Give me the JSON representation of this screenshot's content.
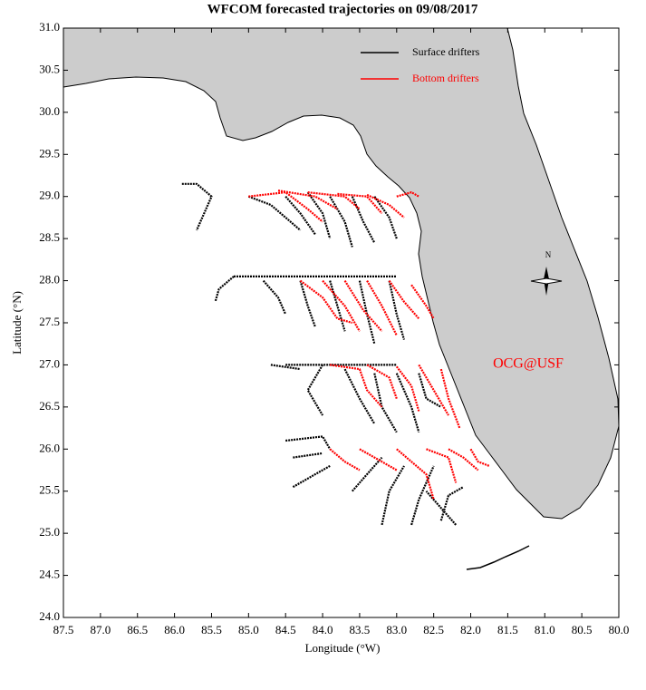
{
  "chart_data": {
    "type": "trajectory",
    "title": "WFCOM forecasted trajectories on 09/08/2017",
    "x_label": "Longitude (°W)",
    "y_label": "Latitude (°N)",
    "annotation": "OCG@USF",
    "annotation_color": "#ff0000",
    "compass_label": "N",
    "land_color": "#cccccc",
    "xlim": [
      87.5,
      80.0
    ],
    "ylim": [
      24.0,
      31.0
    ],
    "xticks": [
      87.5,
      {
        "value": 87,
        "label": "87.0"
      },
      86.5,
      {
        "value": 86,
        "label": "86.0"
      },
      85.5,
      {
        "value": 85,
        "label": "85.0"
      },
      84.5,
      {
        "value": 84,
        "label": "84.0"
      },
      83.5,
      {
        "value": 83,
        "label": "83.0"
      },
      82.5,
      {
        "value": 82,
        "label": "82.0"
      },
      81.5,
      {
        "value": 81,
        "label": "81.0"
      },
      80.5,
      {
        "value": 80,
        "label": "80.0"
      }
    ],
    "yticks": [
      {
        "value": 24,
        "label": "24.0"
      },
      24.5,
      {
        "value": 25,
        "label": "25.0"
      },
      25.5,
      {
        "value": 26,
        "label": "26.0"
      },
      26.5,
      {
        "value": 27,
        "label": "27.0"
      },
      27.5,
      {
        "value": 28,
        "label": "28.0"
      },
      28.5,
      {
        "value": 29,
        "label": "29.0"
      },
      29.5,
      {
        "value": 30,
        "label": "30.0"
      },
      30.5,
      {
        "value": 31,
        "label": "31.0"
      }
    ],
    "series": [
      {
        "name": "Surface drifters",
        "color": "#000000",
        "tracks": [
          {
            "x": [
              85.9,
              85.7,
              85.5,
              85.6,
              85.7
            ],
            "y": [
              29.15,
              29.15,
              29.0,
              28.8,
              28.6
            ]
          },
          {
            "x": [
              85.0,
              84.7,
              84.5,
              84.3
            ],
            "y": [
              29.0,
              28.9,
              28.75,
              28.6
            ]
          },
          {
            "x": [
              84.5,
              84.3,
              84.1
            ],
            "y": [
              29.0,
              28.8,
              28.55
            ]
          },
          {
            "x": [
              84.2,
              84.0,
              83.9
            ],
            "y": [
              29.05,
              28.8,
              28.5
            ]
          },
          {
            "x": [
              83.9,
              83.7,
              83.6
            ],
            "y": [
              29.0,
              28.7,
              28.4
            ]
          },
          {
            "x": [
              83.6,
              83.45,
              83.3
            ],
            "y": [
              29.0,
              28.7,
              28.45
            ]
          },
          {
            "x": [
              83.3,
              83.1,
              83.0
            ],
            "y": [
              29.0,
              28.75,
              28.5
            ]
          },
          {
            "x": [
              85.2,
              84.0,
              83.0
            ],
            "y": [
              28.05,
              28.05,
              28.05
            ]
          },
          {
            "x": [
              85.2,
              85.4,
              85.45
            ],
            "y": [
              28.05,
              27.9,
              27.75
            ]
          },
          {
            "x": [
              84.8,
              84.6,
              84.5
            ],
            "y": [
              28.0,
              27.8,
              27.6
            ]
          },
          {
            "x": [
              84.3,
              84.2,
              84.1
            ],
            "y": [
              28.0,
              27.7,
              27.45
            ]
          },
          {
            "x": [
              83.9,
              83.8,
              83.7
            ],
            "y": [
              28.0,
              27.7,
              27.4
            ]
          },
          {
            "x": [
              83.5,
              83.4,
              83.3
            ],
            "y": [
              28.0,
              27.6,
              27.25
            ]
          },
          {
            "x": [
              83.1,
              83.0,
              82.9
            ],
            "y": [
              28.0,
              27.6,
              27.3
            ]
          },
          {
            "x": [
              84.5,
              83.0
            ],
            "y": [
              27.0,
              27.0
            ]
          },
          {
            "x": [
              84.7,
              84.3
            ],
            "y": [
              27.0,
              26.95
            ]
          },
          {
            "x": [
              84.0,
              84.2,
              84.0
            ],
            "y": [
              27.0,
              26.7,
              26.4
            ]
          },
          {
            "x": [
              83.7,
              83.5,
              83.3
            ],
            "y": [
              26.95,
              26.6,
              26.3
            ]
          },
          {
            "x": [
              83.3,
              83.2,
              83.0
            ],
            "y": [
              26.9,
              26.5,
              26.2
            ]
          },
          {
            "x": [
              83.0,
              82.8,
              82.7
            ],
            "y": [
              26.9,
              26.5,
              26.2
            ]
          },
          {
            "x": [
              82.7,
              82.6,
              82.4
            ],
            "y": [
              26.9,
              26.6,
              26.5
            ]
          },
          {
            "x": [
              84.5,
              84.0,
              83.9
            ],
            "y": [
              26.1,
              26.15,
              26.0
            ]
          },
          {
            "x": [
              84.4,
              84.0
            ],
            "y": [
              25.9,
              25.95
            ]
          },
          {
            "x": [
              84.4,
              84.1,
              83.9
            ],
            "y": [
              25.55,
              25.7,
              25.8
            ]
          },
          {
            "x": [
              83.6,
              83.4,
              83.2
            ],
            "y": [
              25.5,
              25.7,
              25.9
            ]
          },
          {
            "x": [
              83.2,
              83.1,
              82.9
            ],
            "y": [
              25.1,
              25.5,
              25.8
            ]
          },
          {
            "x": [
              82.8,
              82.7,
              82.5
            ],
            "y": [
              25.1,
              25.4,
              25.8
            ]
          },
          {
            "x": [
              82.4,
              82.3,
              82.1
            ],
            "y": [
              25.15,
              25.45,
              25.55
            ]
          },
          {
            "x": [
              82.2,
              82.4,
              82.6
            ],
            "y": [
              25.1,
              25.3,
              25.5
            ]
          }
        ]
      },
      {
        "name": "Bottom drifters",
        "color": "#ff0000",
        "tracks": [
          {
            "x": [
              85.0,
              84.5,
              84.2,
              84.0
            ],
            "y": [
              29.0,
              29.05,
              28.85,
              28.7
            ]
          },
          {
            "x": [
              84.6,
              84.1,
              83.8
            ],
            "y": [
              29.07,
              29.0,
              28.85
            ]
          },
          {
            "x": [
              84.2,
              83.7,
              83.5
            ],
            "y": [
              29.05,
              29.0,
              28.85
            ]
          },
          {
            "x": [
              83.8,
              83.4,
              83.2
            ],
            "y": [
              29.03,
              29.0,
              28.8
            ]
          },
          {
            "x": [
              83.4,
              83.1,
              82.9
            ],
            "y": [
              29.02,
              28.9,
              28.75
            ]
          },
          {
            "x": [
              83.0,
              82.8,
              82.7
            ],
            "y": [
              29.0,
              29.05,
              29.0
            ]
          },
          {
            "x": [
              84.3,
              84.0,
              83.8,
              83.6
            ],
            "y": [
              28.0,
              27.8,
              27.55,
              27.5
            ]
          },
          {
            "x": [
              84.0,
              83.7,
              83.5
            ],
            "y": [
              28.0,
              27.7,
              27.4
            ]
          },
          {
            "x": [
              83.7,
              83.45,
              83.2
            ],
            "y": [
              28.0,
              27.65,
              27.4
            ]
          },
          {
            "x": [
              83.4,
              83.2,
              83.0
            ],
            "y": [
              28.0,
              27.7,
              27.35
            ]
          },
          {
            "x": [
              83.1,
              82.9,
              82.7
            ],
            "y": [
              28.0,
              27.75,
              27.55
            ]
          },
          {
            "x": [
              82.8,
              82.6,
              82.5
            ],
            "y": [
              27.95,
              27.7,
              27.55
            ]
          },
          {
            "x": [
              83.9,
              83.5,
              83.4,
              83.2
            ],
            "y": [
              27.0,
              26.95,
              26.7,
              26.5
            ]
          },
          {
            "x": [
              83.4,
              83.1,
              83.0
            ],
            "y": [
              27.0,
              26.85,
              26.6
            ]
          },
          {
            "x": [
              83.0,
              82.8,
              82.7
            ],
            "y": [
              26.98,
              26.75,
              26.45
            ]
          },
          {
            "x": [
              82.7,
              82.5,
              82.3
            ],
            "y": [
              27.0,
              26.7,
              26.4
            ]
          },
          {
            "x": [
              82.4,
              82.3,
              82.15
            ],
            "y": [
              26.95,
              26.6,
              26.25
            ]
          },
          {
            "x": [
              83.9,
              83.7,
              83.5
            ],
            "y": [
              26.0,
              25.85,
              25.75
            ]
          },
          {
            "x": [
              83.5,
              83.2,
              83.0
            ],
            "y": [
              26.0,
              25.85,
              25.75
            ]
          },
          {
            "x": [
              83.0,
              82.8,
              82.6,
              82.5
            ],
            "y": [
              26.0,
              25.85,
              25.7,
              25.4
            ]
          },
          {
            "x": [
              82.6,
              82.3,
              82.2
            ],
            "y": [
              26.0,
              25.9,
              25.6
            ]
          },
          {
            "x": [
              82.3,
              82.1,
              81.9
            ],
            "y": [
              26.0,
              25.9,
              25.75
            ]
          },
          {
            "x": [
              82.0,
              81.9,
              81.75
            ],
            "y": [
              26.0,
              25.85,
              25.8
            ]
          }
        ]
      }
    ]
  }
}
